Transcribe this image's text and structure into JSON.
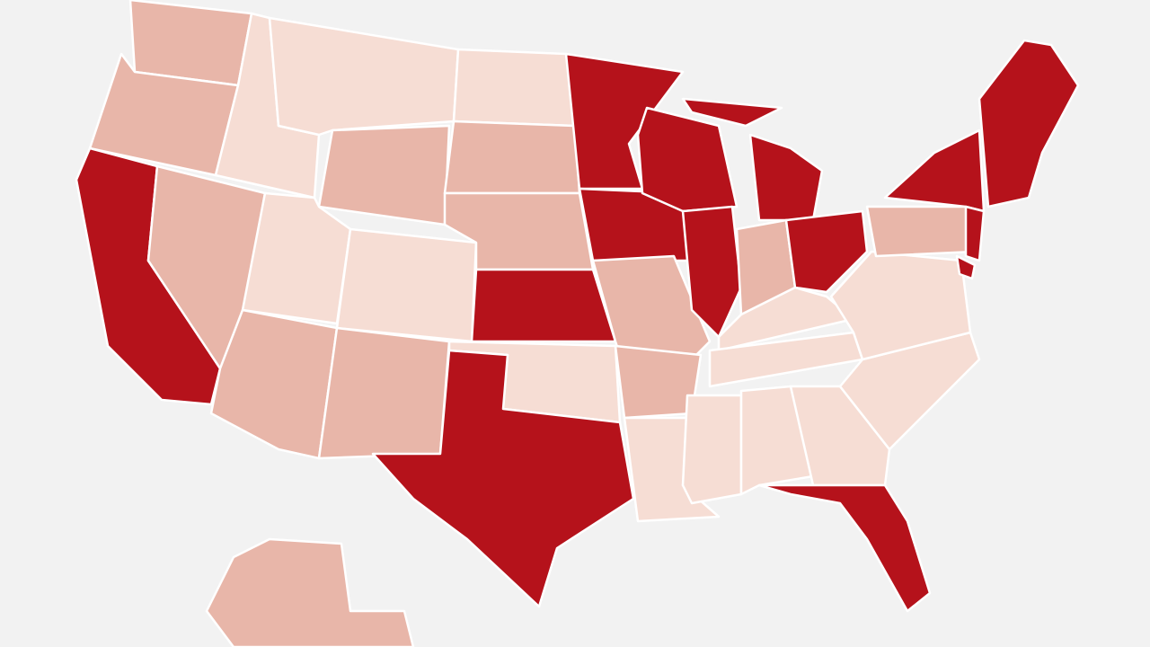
{
  "map": {
    "background": "#f2f2f2",
    "stroke": "#ffffff",
    "fill_levels": [
      "#b5121b",
      "#e8b6a9",
      "#f6ddd4"
    ]
  }
}
